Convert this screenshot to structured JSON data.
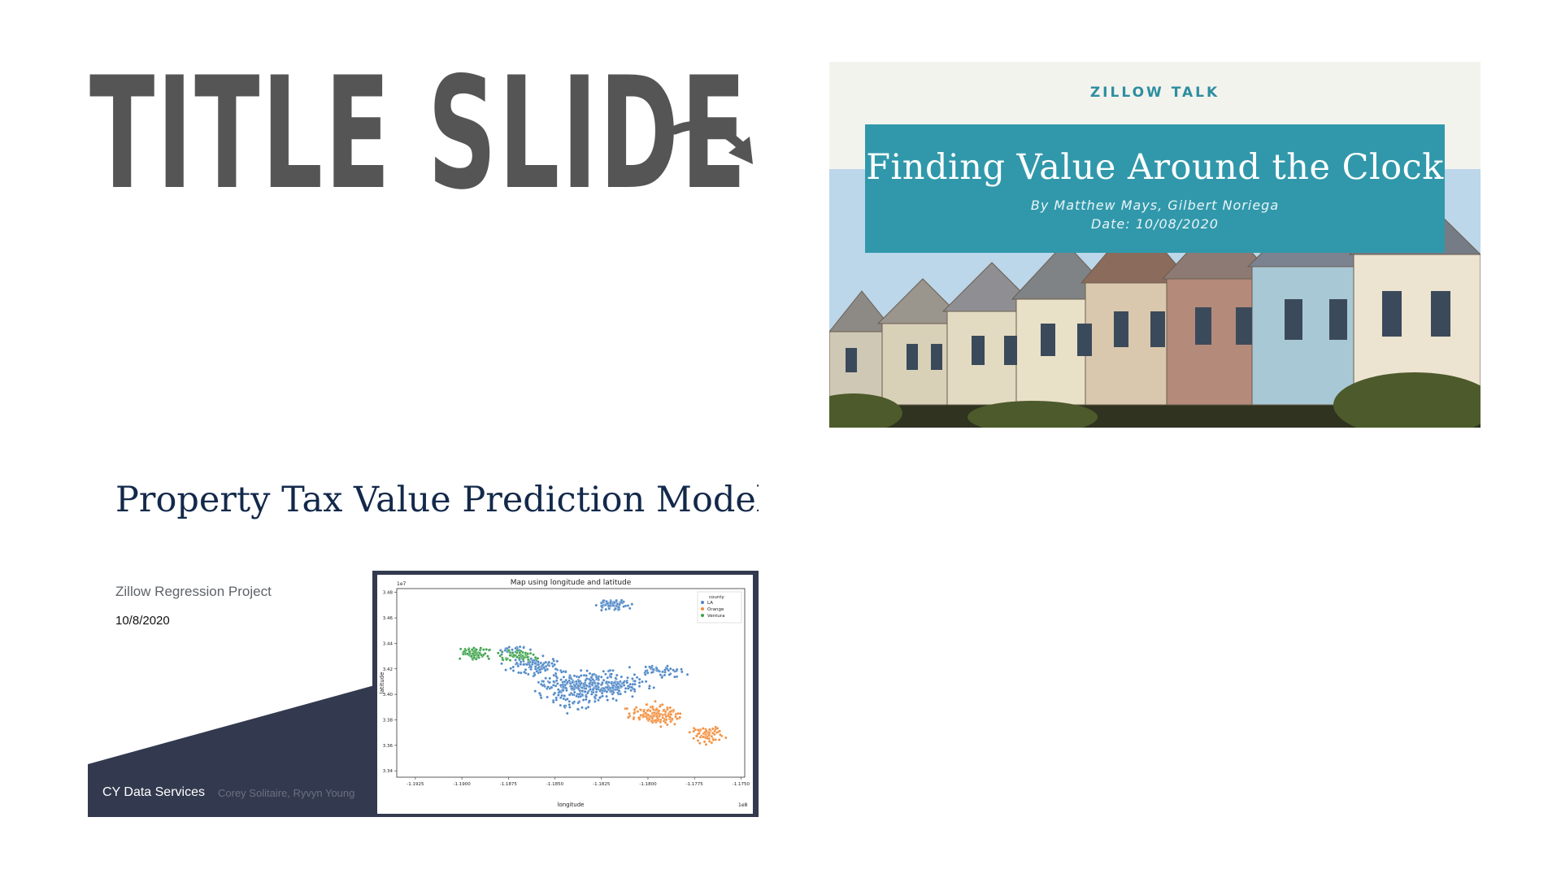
{
  "heading": {
    "text": "TITLE SLIDE"
  },
  "slide1": {
    "kicker": "ZILLOW TALK",
    "title": "Finding Value Around the Clock",
    "authors": "By Matthew Mays, Gilbert Noriega",
    "date": "Date: 10/08/2020",
    "colors": {
      "accent": "#3198ab",
      "kicker": "#2c8ea0",
      "background": "#f3f3ee"
    }
  },
  "slide2": {
    "title": "Property Tax Value Prediction Model",
    "subtitle": "Zillow Regression Project",
    "date": "10/8/2020",
    "footer_company": "CY Data Services",
    "footer_authors": "Corey Solitaire, Ryvyn Young",
    "colors": {
      "shape": "#333a4f",
      "title": "#13294b"
    }
  },
  "chart_data": {
    "type": "scatter",
    "title": "Map using longitude and latitude",
    "xlabel": "longitude",
    "ylabel": "latitude",
    "x_scale_label": "1e8",
    "y_scale_label": "1e7",
    "xlim": [
      -1.1935,
      -1.1748
    ],
    "ylim": [
      3.335,
      3.483
    ],
    "x_ticks": [
      "-1.1925",
      "-1.1900",
      "-1.1875",
      "-1.1850",
      "-1.1825",
      "-1.1800",
      "-1.1775",
      "-1.1750"
    ],
    "y_ticks": [
      "3.34",
      "3.36",
      "3.38",
      "3.40",
      "3.42",
      "3.44",
      "3.46",
      "3.48"
    ],
    "legend": {
      "title": "county",
      "position": "top-right"
    },
    "series": [
      {
        "name": "LA",
        "color": "#4c86c6"
      },
      {
        "name": "Orange",
        "color": "#f28e3c"
      },
      {
        "name": "Ventura",
        "color": "#3da34a"
      }
    ]
  }
}
